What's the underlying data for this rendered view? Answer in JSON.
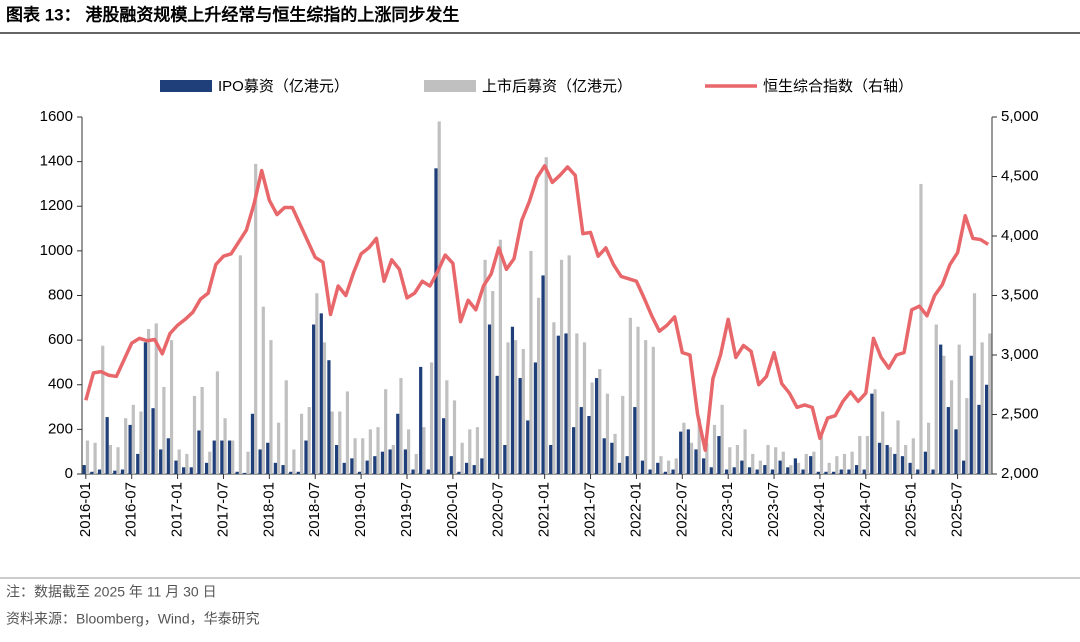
{
  "header": {
    "title": "图表 13：  港股融资规模上升经常与恒生综指的上涨同步发生"
  },
  "chart_data": {
    "type": "bar-line",
    "categories": [
      "2016-01",
      null,
      null,
      null,
      null,
      null,
      "2016-07",
      null,
      null,
      null,
      null,
      null,
      "2017-01",
      null,
      null,
      null,
      null,
      null,
      "2017-07",
      null,
      null,
      null,
      null,
      null,
      "2018-01",
      null,
      null,
      null,
      null,
      null,
      "2018-07",
      null,
      null,
      null,
      null,
      null,
      "2019-01",
      null,
      null,
      null,
      null,
      null,
      "2019-07",
      null,
      null,
      null,
      null,
      null,
      "2020-01",
      null,
      null,
      null,
      null,
      null,
      "2020-07",
      null,
      null,
      null,
      null,
      null,
      "2021-01",
      null,
      null,
      null,
      null,
      null,
      "2021-07",
      null,
      null,
      null,
      null,
      null,
      "2022-01",
      null,
      null,
      null,
      null,
      null,
      "2022-07",
      null,
      null,
      null,
      null,
      null,
      "2023-01",
      null,
      null,
      null,
      null,
      null,
      "2023-07",
      null,
      null,
      null,
      null,
      null,
      "2024-01",
      null,
      null,
      null,
      null,
      null,
      "2024-07",
      null,
      null,
      null,
      null,
      null,
      "2025-01",
      null,
      null,
      null,
      null,
      null,
      "2025-07",
      null,
      null,
      null,
      null
    ],
    "series": [
      {
        "name": "IPO募资（亿港元）",
        "color": "#1f3f7a",
        "type": "bar",
        "values": [
          40,
          10,
          20,
          255,
          15,
          20,
          220,
          90,
          590,
          295,
          110,
          160,
          60,
          30,
          30,
          195,
          50,
          150,
          150,
          150,
          10,
          5,
          270,
          110,
          140,
          50,
          40,
          10,
          10,
          150,
          670,
          720,
          510,
          130,
          50,
          70,
          10,
          60,
          80,
          100,
          110,
          270,
          110,
          20,
          480,
          20,
          1370,
          250,
          80,
          10,
          50,
          40,
          70,
          670,
          440,
          130,
          660,
          430,
          240,
          500,
          890,
          130,
          620,
          630,
          210,
          300,
          260,
          430,
          160,
          140,
          50,
          80,
          300,
          60,
          20,
          50,
          10,
          20,
          190,
          200,
          110,
          70,
          30,
          170,
          20,
          30,
          60,
          30,
          20,
          40,
          20,
          60,
          30,
          70,
          20,
          80,
          10,
          10,
          10,
          20,
          20,
          40,
          20,
          360,
          140,
          130,
          90,
          80,
          50,
          20,
          100,
          20,
          580,
          300,
          200,
          60,
          530,
          310,
          400
        ]
      },
      {
        "name": "上市后募资（亿港元）",
        "color": "#c0c0c0",
        "type": "bar",
        "values": [
          150,
          140,
          575,
          130,
          120,
          250,
          310,
          280,
          650,
          675,
          390,
          600,
          110,
          90,
          350,
          390,
          100,
          460,
          250,
          150,
          980,
          100,
          1390,
          750,
          600,
          230,
          420,
          110,
          270,
          300,
          810,
          590,
          280,
          280,
          370,
          160,
          160,
          200,
          210,
          380,
          130,
          430,
          200,
          90,
          210,
          500,
          1580,
          420,
          330,
          140,
          200,
          210,
          960,
          820,
          1050,
          590,
          600,
          560,
          1000,
          790,
          1420,
          680,
          960,
          980,
          630,
          590,
          410,
          470,
          360,
          180,
          350,
          700,
          660,
          600,
          570,
          80,
          60,
          70,
          230,
          140,
          250,
          140,
          220,
          310,
          120,
          130,
          200,
          90,
          60,
          130,
          120,
          100,
          40,
          50,
          90,
          100,
          170,
          50,
          80,
          90,
          100,
          170,
          170,
          380,
          280,
          120,
          240,
          130,
          160,
          1300,
          230,
          670,
          530,
          420,
          580,
          340,
          810,
          590,
          630
        ]
      },
      {
        "name": "恒生综合指数（右轴）",
        "color": "#e8676b",
        "type": "line",
        "axis": "y2",
        "values": [
          2620,
          2850,
          2860,
          2830,
          2820,
          2960,
          3100,
          3140,
          3120,
          3130,
          3010,
          3180,
          3250,
          3300,
          3360,
          3470,
          3520,
          3760,
          3830,
          3850,
          3950,
          4050,
          4270,
          4550,
          4300,
          4180,
          4240,
          4240,
          4100,
          3960,
          3820,
          3780,
          3340,
          3580,
          3500,
          3690,
          3850,
          3900,
          3980,
          3620,
          3800,
          3720,
          3480,
          3520,
          3620,
          3580,
          3700,
          3840,
          3770,
          3280,
          3460,
          3380,
          3580,
          3680,
          3900,
          3720,
          3810,
          4130,
          4290,
          4490,
          4590,
          4450,
          4510,
          4580,
          4510,
          4020,
          4030,
          3830,
          3900,
          3760,
          3660,
          3640,
          3620,
          3480,
          3330,
          3200,
          3250,
          3320,
          3020,
          3000,
          2500,
          2200,
          2800,
          3000,
          3300,
          2980,
          3080,
          3030,
          2750,
          2820,
          3020,
          2760,
          2680,
          2560,
          2580,
          2560,
          2300,
          2470,
          2490,
          2610,
          2690,
          2610,
          2680,
          3140,
          2980,
          2890,
          3000,
          3020,
          3380,
          3410,
          3330,
          3500,
          3590,
          3760,
          3860,
          4170,
          3980,
          3970,
          3930
        ]
      }
    ],
    "ylim": [
      0,
      1600
    ],
    "yticks": [
      0,
      200,
      400,
      600,
      800,
      1000,
      1200,
      1400,
      1600
    ],
    "y2lim": [
      2000,
      5000
    ],
    "y2ticks": [
      {
        "value": 2000,
        "label": "2,000"
      },
      {
        "value": 2500,
        "label": "2,500"
      },
      {
        "value": 3000,
        "label": "3,000"
      },
      {
        "value": 3500,
        "label": "3,500"
      },
      {
        "value": 4000,
        "label": "4,000"
      },
      {
        "value": 4500,
        "label": "4,500"
      },
      {
        "value": 5000,
        "label": "5,000"
      }
    ],
    "legend": "top"
  },
  "footer": {
    "note": "注：数据截至 2025 年 11 月 30 日",
    "source": "资料来源：Bloomberg，Wind，华泰研究"
  }
}
